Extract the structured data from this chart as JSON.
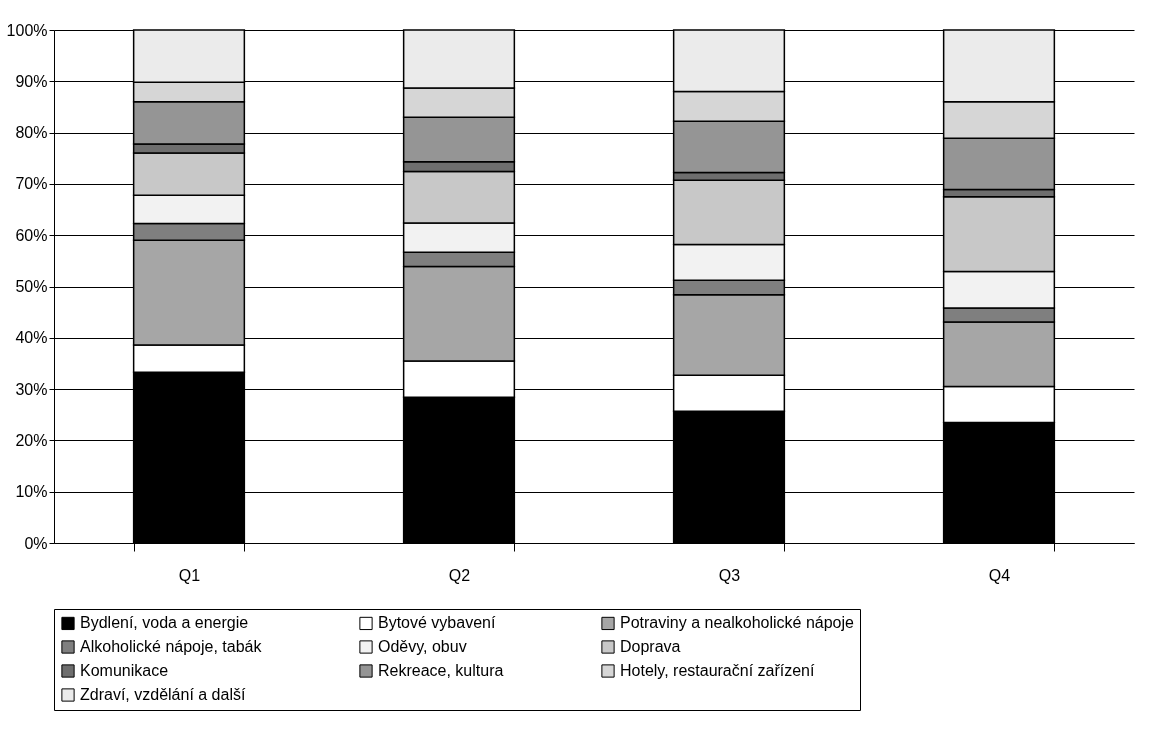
{
  "chart_data": {
    "type": "bar",
    "stacked": true,
    "categories": [
      "Q1",
      "Q2",
      "Q3",
      "Q4"
    ],
    "series": [
      {
        "name": "Bydlení, voda a energie",
        "color": "#000000",
        "values": [
          33.3,
          28.4,
          25.7,
          23.5
        ]
      },
      {
        "name": "Bytové vybavení",
        "color": "#ffffff",
        "values": [
          5.3,
          7.1,
          7.0,
          7.0
        ]
      },
      {
        "name": "Potraviny a nealkoholické nápoje",
        "color": "#a6a6a6",
        "values": [
          20.4,
          18.4,
          15.7,
          12.6
        ]
      },
      {
        "name": "Alkoholické nápoje, tabák",
        "color": "#7f7f7f",
        "values": [
          3.3,
          2.8,
          2.8,
          2.7
        ]
      },
      {
        "name": "Oděvy, obuv",
        "color": "#f2f2f2",
        "values": [
          5.5,
          5.7,
          7.0,
          7.1
        ]
      },
      {
        "name": "Doprava",
        "color": "#c8c8c8",
        "values": [
          8.2,
          10.0,
          12.5,
          14.6
        ]
      },
      {
        "name": "Komunikace",
        "color": "#6e6e6e",
        "values": [
          1.8,
          1.9,
          1.5,
          1.4
        ]
      },
      {
        "name": "Rekreace, kultura",
        "color": "#959595",
        "values": [
          8.2,
          8.7,
          10.0,
          10.0
        ]
      },
      {
        "name": "Hotely, restaurační zařízení",
        "color": "#d6d6d6",
        "values": [
          3.8,
          5.7,
          5.8,
          7.1
        ]
      },
      {
        "name": "Zdraví, vzdělání a další",
        "color": "#ebebeb",
        "values": [
          10.2,
          11.3,
          12.0,
          14.0
        ]
      }
    ],
    "ylim": [
      0,
      100
    ],
    "yticks": [
      {
        "value": 0,
        "label": "0%"
      },
      {
        "value": 10,
        "label": "10%"
      },
      {
        "value": 20,
        "label": "20%"
      },
      {
        "value": 30,
        "label": "30%"
      },
      {
        "value": 40,
        "label": "40%"
      },
      {
        "value": 50,
        "label": "50%"
      },
      {
        "value": 60,
        "label": "60%"
      },
      {
        "value": 70,
        "label": "70%"
      },
      {
        "value": 80,
        "label": "80%"
      },
      {
        "value": 90,
        "label": "90%"
      },
      {
        "value": 100,
        "label": "100%"
      }
    ],
    "grid": "y",
    "legend": "bottom"
  }
}
